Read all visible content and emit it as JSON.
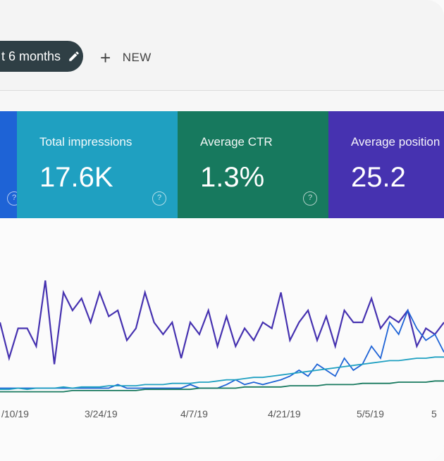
{
  "toolbar": {
    "date_range_label": "t 6 months",
    "new_label": "NEW",
    "plus_icon": "+"
  },
  "cards": [
    {
      "label": "",
      "value": "",
      "color": "#1e63d6"
    },
    {
      "label": "Total impressions",
      "value": "17.6K",
      "color": "#1fa0c1"
    },
    {
      "label": "Average CTR",
      "value": "1.3%",
      "color": "#17795e"
    },
    {
      "label": "Average position",
      "value": "25.2",
      "color": "#4632b0"
    }
  ],
  "help_glyph": "?",
  "chart_data": {
    "type": "line",
    "x_ticks": [
      "/10/19",
      "3/24/19",
      "4/7/19",
      "4/21/19",
      "5/5/19",
      "5"
    ],
    "series": [
      {
        "color": "#4632b0",
        "values": [
          60,
          30,
          55,
          55,
          40,
          95,
          25,
          85,
          70,
          80,
          60,
          85,
          65,
          70,
          45,
          55,
          85,
          60,
          50,
          60,
          30,
          60,
          50,
          70,
          40,
          65,
          40,
          55,
          45,
          60,
          55,
          85,
          45,
          60,
          70,
          45,
          65,
          40,
          70,
          60,
          60,
          80,
          55,
          65,
          60,
          70,
          40,
          55,
          50,
          60
        ]
      },
      {
        "color": "#1e63d6",
        "values": [
          5,
          5,
          5,
          5,
          5,
          5,
          5,
          5,
          5,
          5,
          5,
          5,
          5,
          8,
          5,
          5,
          5,
          5,
          5,
          5,
          5,
          8,
          5,
          5,
          5,
          8,
          12,
          8,
          10,
          8,
          10,
          12,
          15,
          20,
          15,
          25,
          20,
          15,
          30,
          20,
          25,
          40,
          30,
          60,
          50,
          70,
          55,
          45,
          50,
          35
        ]
      },
      {
        "color": "#1fa0c1",
        "values": [
          4,
          4,
          5,
          4,
          5,
          5,
          5,
          6,
          5,
          6,
          6,
          6,
          7,
          7,
          7,
          7,
          8,
          8,
          8,
          9,
          9,
          9,
          10,
          10,
          11,
          12,
          12,
          13,
          14,
          14,
          15,
          16,
          17,
          18,
          19,
          20,
          21,
          22,
          23,
          24,
          25,
          26,
          27,
          28,
          28,
          29,
          30,
          30,
          31,
          31
        ]
      },
      {
        "color": "#17795e",
        "values": [
          2,
          2,
          2,
          2,
          2,
          2,
          2,
          2,
          3,
          3,
          3,
          3,
          3,
          3,
          3,
          3,
          4,
          4,
          4,
          4,
          4,
          4,
          5,
          5,
          5,
          5,
          5,
          6,
          6,
          6,
          6,
          6,
          7,
          7,
          7,
          7,
          8,
          8,
          8,
          8,
          9,
          9,
          9,
          9,
          10,
          10,
          10,
          10,
          11,
          11
        ]
      }
    ],
    "ylim": [
      0,
      100
    ]
  }
}
